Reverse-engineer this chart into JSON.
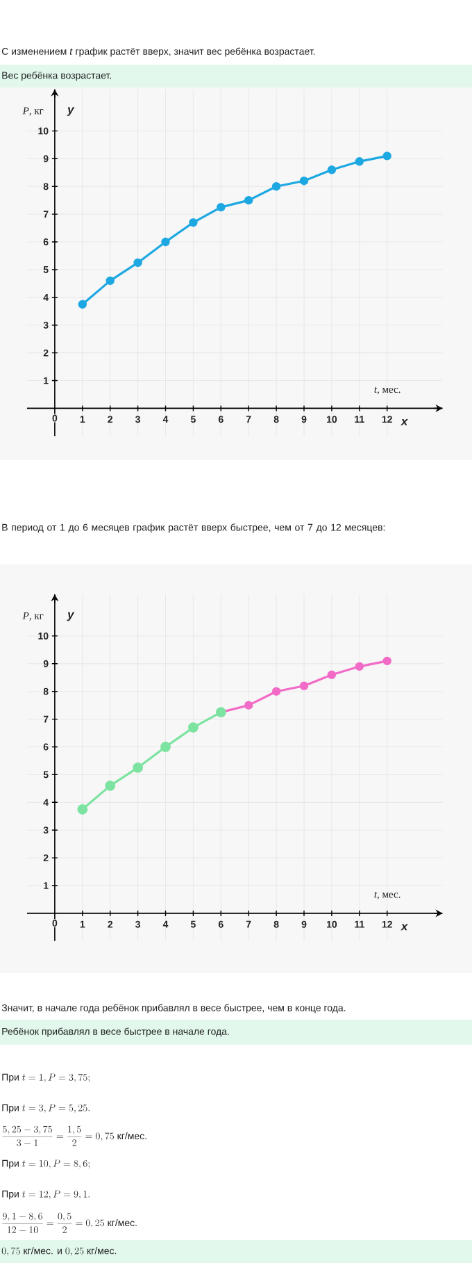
{
  "chart_data": [
    {
      "type": "line",
      "x": [
        1,
        2,
        3,
        4,
        5,
        6,
        7,
        8,
        9,
        10,
        11,
        12
      ],
      "series": [
        {
          "color": "#1ea8e2",
          "values": [
            3.75,
            4.6,
            5.25,
            6.0,
            6.7,
            7.25,
            7.5,
            8.0,
            8.2,
            8.6,
            8.9,
            9.1
          ]
        }
      ],
      "xlabel": "*t*, мес.",
      "ylabel": "*P*,  кг",
      "xlim": [
        -1,
        14
      ],
      "ylim": [
        -1,
        11.5
      ],
      "xticks": [
        0,
        1,
        2,
        3,
        4,
        5,
        6,
        7,
        8,
        9,
        10,
        11,
        12
      ],
      "yticks": [
        1,
        2,
        3,
        4,
        5,
        6,
        7,
        8,
        9,
        10
      ],
      "grid": true,
      "marker": "circle",
      "line_style": "solid",
      "annotations": [
        "x",
        "y",
        "С изменением *t* график растёт вверх, значит вес ребёнка возрастает.",
        "Вес ребёнка возрастает."
      ]
    },
    {
      "type": "line",
      "series": [
        {
          "color": "#7de3a1",
          "x": [
            1,
            2,
            3,
            4,
            5,
            6
          ],
          "values": [
            3.75,
            4.6,
            5.25,
            6.0,
            6.7,
            7.25
          ]
        },
        {
          "color": "#f26bc6",
          "x": [
            6,
            7,
            8,
            9,
            10,
            11,
            12
          ],
          "values": [
            7.25,
            7.5,
            8.0,
            8.2,
            8.6,
            8.9,
            9.1
          ]
        }
      ],
      "xlabel": "*t*, мес.",
      "ylabel": "*P*,  кг",
      "xlim": [
        -1,
        14
      ],
      "ylim": [
        -1,
        11.5
      ],
      "xticks": [
        0,
        1,
        2,
        3,
        4,
        5,
        6,
        7,
        8,
        9,
        10,
        11,
        12
      ],
      "yticks": [
        1,
        2,
        3,
        4,
        5,
        6,
        7,
        8,
        9,
        10
      ],
      "grid": true,
      "marker": "circle",
      "line_style": "solid",
      "annotations": [
        "x",
        "y",
        "В период от 1 до 6 месяцев график растёт вверх быстрее, чем от 7 до 12 месяцев:",
        "Значит, в начале года ребёнок прибавлял в весе быстрее, чем в конце года.",
        "Ребёнок прибавлял в весе быстрее в начале года.",
        "\\mbox{При }t=1, P=3,75;",
        "\\mbox{При }t=3, P=5,25.",
        "\\frac{5,25-3,75}{3-1}=\\frac{1,5}{2}=0,75\\mbox{ кг/мес.}",
        "\\mbox{При }t=10, P=8,6;",
        "\\mbox{При }t=12, P=9,1.",
        "\\frac{9,1-8,6}{12-10}=\\frac{0,5}{2}=0,25\\mbox{ кг/мес.}",
        "0,75\\mbox{ кг/мес. и }0,25\\mbox{ кг/мес.}"
      ]
    }
  ]
}
